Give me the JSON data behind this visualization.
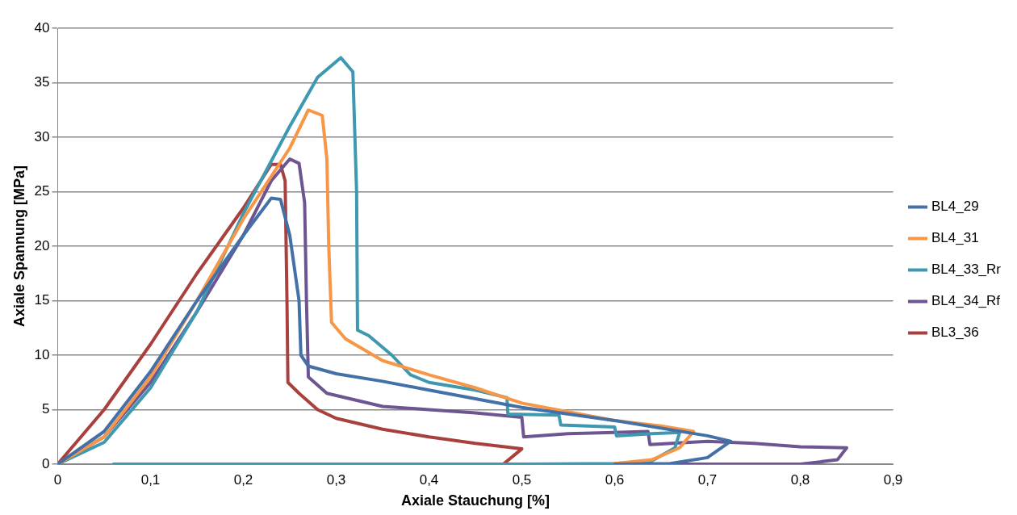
{
  "chart_data": {
    "type": "line",
    "xlabel": "Axiale Stauchung [%]",
    "ylabel": "Axiale Spannung [MPa]",
    "xlim": [
      0,
      0.9
    ],
    "xticks": [
      0,
      {
        "value": 0.1,
        "label": "0,1"
      },
      {
        "value": 0.2,
        "label": "0,2"
      },
      {
        "value": 0.3,
        "label": "0,3"
      },
      {
        "value": 0.4,
        "label": "0,4"
      },
      {
        "value": 0.5,
        "label": "0,5"
      },
      {
        "value": 0.6,
        "label": "0,6"
      },
      {
        "value": 0.7,
        "label": "0,7"
      },
      {
        "value": 0.8,
        "label": "0,8"
      },
      {
        "value": 0.9,
        "label": "0,9"
      }
    ],
    "ylim": [
      0,
      40
    ],
    "yticks": [
      0,
      5,
      10,
      15,
      20,
      25,
      30,
      35,
      40
    ],
    "grid": "y",
    "legend": "right",
    "marker": "none",
    "line_style": "solid",
    "series": [
      {
        "name": "BL4_29",
        "color": "#4470a8",
        "x": [
          0,
          0.05,
          0.1,
          0.15,
          0.2,
          0.23,
          0.24,
          0.25,
          0.26,
          0.262,
          0.27,
          0.3,
          0.35,
          0.4,
          0.45,
          0.5,
          0.6,
          0.7,
          0.725,
          0.7,
          0.66,
          0.6
        ],
        "values": [
          0,
          3,
          8.5,
          15,
          21,
          24.4,
          24.3,
          21,
          15,
          10,
          9,
          8.3,
          7.6,
          6.8,
          6,
          5.2,
          4,
          2.6,
          2.1,
          0.6,
          0.05,
          0
        ]
      },
      {
        "name": "BL4_31",
        "color": "#f79646",
        "x": [
          0,
          0.05,
          0.1,
          0.15,
          0.2,
          0.25,
          0.27,
          0.285,
          0.29,
          0.292,
          0.295,
          0.31,
          0.35,
          0.4,
          0.45,
          0.5,
          0.55,
          0.6,
          0.65,
          0.685,
          0.67,
          0.64,
          0.6
        ],
        "values": [
          0,
          2.5,
          8,
          15,
          22.5,
          29,
          32.5,
          32,
          28,
          20,
          13,
          11.5,
          9.5,
          8.2,
          7,
          5.6,
          4.8,
          4,
          3.5,
          3,
          1.5,
          0.4,
          0.05
        ]
      },
      {
        "name": "BL4_33_Rr",
        "color": "#3e98b0",
        "x": [
          0,
          0.05,
          0.1,
          0.15,
          0.2,
          0.25,
          0.28,
          0.305,
          0.318,
          0.322,
          0.323,
          0.335,
          0.36,
          0.38,
          0.4,
          0.45,
          0.484,
          0.485,
          0.54,
          0.542,
          0.6,
          0.602,
          0.64,
          0.67,
          0.665,
          0.64,
          0.6,
          0.5,
          0.06
        ],
        "values": [
          0,
          2,
          7,
          14,
          23,
          31,
          35.5,
          37.3,
          36,
          25,
          12.3,
          11.8,
          10,
          8.2,
          7.5,
          6.8,
          6.1,
          4.6,
          4.5,
          3.6,
          3.4,
          2.6,
          2.8,
          2.9,
          1.5,
          0.3,
          0.05,
          0,
          0
        ]
      },
      {
        "name": "BL4_34_Rf",
        "color": "#6c5590",
        "x": [
          0,
          0.05,
          0.1,
          0.15,
          0.2,
          0.23,
          0.25,
          0.26,
          0.266,
          0.268,
          0.27,
          0.29,
          0.35,
          0.4,
          0.45,
          0.5,
          0.502,
          0.55,
          0.6,
          0.636,
          0.638,
          0.7,
          0.75,
          0.8,
          0.85,
          0.84,
          0.8,
          0.24
        ],
        "values": [
          0,
          2.5,
          7.5,
          14,
          21,
          26,
          28,
          27.6,
          24,
          15,
          8,
          6.5,
          5.3,
          5,
          4.7,
          4.3,
          2.5,
          2.8,
          2.9,
          3,
          1.8,
          2.1,
          1.9,
          1.6,
          1.5,
          0.4,
          0,
          0
        ]
      },
      {
        "name": "BL3_36",
        "color": "#a8403e",
        "x": [
          0,
          0.05,
          0.1,
          0.15,
          0.2,
          0.23,
          0.24,
          0.245,
          0.247,
          0.248,
          0.26,
          0.28,
          0.3,
          0.35,
          0.4,
          0.45,
          0.5,
          0.48
        ],
        "values": [
          0,
          5,
          11,
          17.5,
          23.5,
          27.5,
          27.5,
          26,
          15,
          7.5,
          6.5,
          5,
          4.2,
          3.2,
          2.5,
          1.9,
          1.4,
          0
        ]
      }
    ]
  }
}
